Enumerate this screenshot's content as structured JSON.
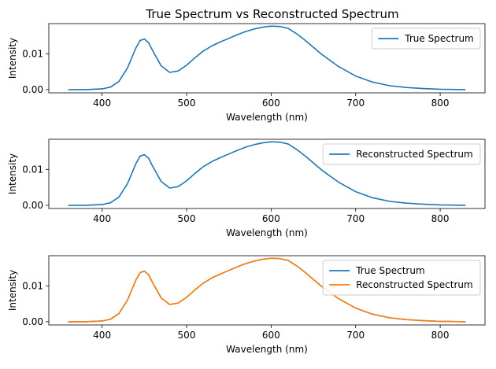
{
  "figure_title": "True Spectrum vs Reconstructed Spectrum",
  "colors": {
    "true": "#1f77b4",
    "reconstructed": "#ff7f0e"
  },
  "chart_data": [
    {
      "type": "line",
      "xlabel": "Wavelength (nm)",
      "ylabel": "Intensity",
      "xlim": [
        337,
        853
      ],
      "ylim": [
        -0.0009,
        0.0184
      ],
      "xticks": [
        400,
        500,
        600,
        700,
        800
      ],
      "yticks": [
        0.0,
        0.01
      ],
      "ytick_labels": [
        "0.00",
        "0.01"
      ],
      "grid": false,
      "legend_position": "upper right",
      "series": [
        {
          "name": "True Spectrum",
          "color": "#1f77b4",
          "x": [
            360,
            380,
            400,
            410,
            420,
            430,
            440,
            445,
            450,
            455,
            460,
            470,
            480,
            490,
            500,
            510,
            520,
            530,
            540,
            550,
            560,
            570,
            580,
            590,
            600,
            610,
            620,
            630,
            640,
            650,
            660,
            680,
            700,
            720,
            740,
            760,
            780,
            800,
            830
          ],
          "y": [
            0.0,
            0.0,
            0.0002,
            0.0007,
            0.0023,
            0.006,
            0.0116,
            0.0137,
            0.0141,
            0.0131,
            0.0108,
            0.0066,
            0.0048,
            0.0052,
            0.0068,
            0.0089,
            0.0108,
            0.0122,
            0.0133,
            0.0143,
            0.0153,
            0.0162,
            0.0169,
            0.0174,
            0.0177,
            0.0176,
            0.0171,
            0.0156,
            0.0138,
            0.0118,
            0.0098,
            0.0064,
            0.0038,
            0.0021,
            0.0011,
            0.0006,
            0.0003,
            0.0001,
            0.0
          ]
        }
      ]
    },
    {
      "type": "line",
      "xlabel": "Wavelength (nm)",
      "ylabel": "Intensity",
      "xlim": [
        337,
        853
      ],
      "ylim": [
        -0.0009,
        0.0184
      ],
      "xticks": [
        400,
        500,
        600,
        700,
        800
      ],
      "yticks": [
        0.0,
        0.01
      ],
      "ytick_labels": [
        "0.00",
        "0.01"
      ],
      "grid": false,
      "legend_position": "upper right",
      "series": [
        {
          "name": "Reconstructed Spectrum",
          "color": "#1f77b4",
          "x": [
            360,
            380,
            400,
            410,
            420,
            430,
            440,
            445,
            450,
            455,
            460,
            470,
            480,
            490,
            500,
            510,
            520,
            530,
            540,
            550,
            560,
            570,
            580,
            590,
            600,
            610,
            620,
            630,
            640,
            650,
            660,
            680,
            700,
            720,
            740,
            760,
            780,
            800,
            830
          ],
          "y": [
            0.0,
            0.0,
            0.0002,
            0.0007,
            0.0023,
            0.006,
            0.0116,
            0.0137,
            0.0141,
            0.0131,
            0.0108,
            0.0066,
            0.0048,
            0.0052,
            0.0068,
            0.0089,
            0.0108,
            0.0122,
            0.0133,
            0.0143,
            0.0153,
            0.0162,
            0.0169,
            0.0174,
            0.0177,
            0.0176,
            0.0171,
            0.0156,
            0.0138,
            0.0118,
            0.0098,
            0.0064,
            0.0038,
            0.0021,
            0.0011,
            0.0006,
            0.0003,
            0.0001,
            0.0
          ]
        }
      ]
    },
    {
      "type": "line",
      "xlabel": "Wavelength (nm)",
      "ylabel": "Intensity",
      "xlim": [
        337,
        853
      ],
      "ylim": [
        -0.0009,
        0.0184
      ],
      "xticks": [
        400,
        500,
        600,
        700,
        800
      ],
      "yticks": [
        0.0,
        0.01
      ],
      "ytick_labels": [
        "0.00",
        "0.01"
      ],
      "grid": false,
      "legend_position": "upper right",
      "series": [
        {
          "name": "True Spectrum",
          "color": "#1f77b4",
          "x": [
            360,
            380,
            400,
            410,
            420,
            430,
            440,
            445,
            450,
            455,
            460,
            470,
            480,
            490,
            500,
            510,
            520,
            530,
            540,
            550,
            560,
            570,
            580,
            590,
            600,
            610,
            620,
            630,
            640,
            650,
            660,
            680,
            700,
            720,
            740,
            760,
            780,
            800,
            830
          ],
          "y": [
            0.0,
            0.0,
            0.0002,
            0.0007,
            0.0023,
            0.006,
            0.0116,
            0.0137,
            0.0141,
            0.0131,
            0.0108,
            0.0066,
            0.0048,
            0.0052,
            0.0068,
            0.0089,
            0.0108,
            0.0122,
            0.0133,
            0.0143,
            0.0153,
            0.0162,
            0.0169,
            0.0174,
            0.0177,
            0.0176,
            0.0171,
            0.0156,
            0.0138,
            0.0118,
            0.0098,
            0.0064,
            0.0038,
            0.0021,
            0.0011,
            0.0006,
            0.0003,
            0.0001,
            0.0
          ]
        },
        {
          "name": "Reconstructed Spectrum",
          "color": "#ff7f0e",
          "x": [
            360,
            380,
            400,
            410,
            420,
            430,
            440,
            445,
            450,
            455,
            460,
            470,
            480,
            490,
            500,
            510,
            520,
            530,
            540,
            550,
            560,
            570,
            580,
            590,
            600,
            610,
            620,
            630,
            640,
            650,
            660,
            680,
            700,
            720,
            740,
            760,
            780,
            800,
            830
          ],
          "y": [
            0.0,
            0.0,
            0.0002,
            0.0007,
            0.0023,
            0.006,
            0.0116,
            0.0137,
            0.0141,
            0.0131,
            0.0108,
            0.0066,
            0.0048,
            0.0052,
            0.0068,
            0.0089,
            0.0108,
            0.0122,
            0.0133,
            0.0143,
            0.0153,
            0.0162,
            0.0169,
            0.0174,
            0.0177,
            0.0176,
            0.0171,
            0.0156,
            0.0138,
            0.0118,
            0.0098,
            0.0064,
            0.0038,
            0.0021,
            0.0011,
            0.0006,
            0.0003,
            0.0001,
            0.0
          ]
        }
      ]
    }
  ]
}
